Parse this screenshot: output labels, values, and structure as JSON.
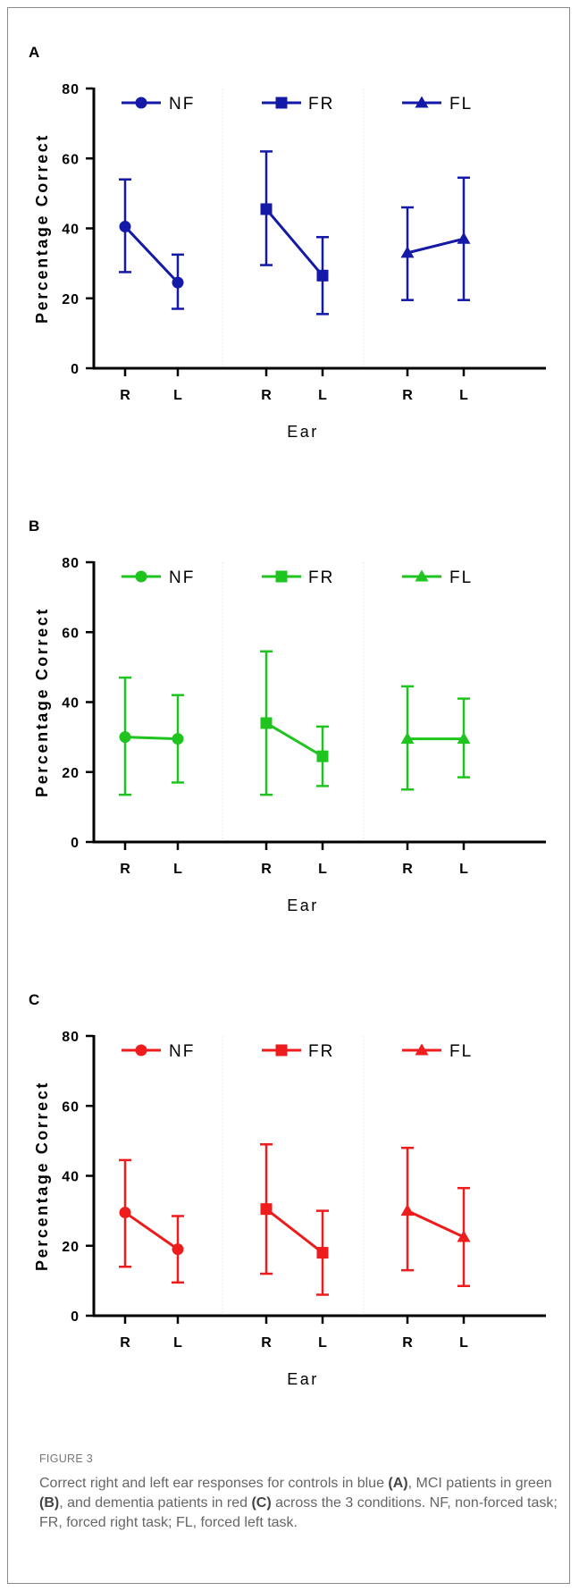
{
  "chart_data": [
    {
      "type": "line",
      "panel_label": "A",
      "xlabel": "Ear",
      "ylabel": "Percentage Correct",
      "ylim": [
        0,
        80
      ],
      "yticks": [
        0,
        20,
        40,
        60,
        80
      ],
      "color": "#1419a8",
      "series": [
        {
          "name": "NF",
          "marker": "circle",
          "categories": [
            "R",
            "L"
          ],
          "values": [
            40.5,
            24.5
          ],
          "err_low": [
            27.5,
            17.0
          ],
          "err_high": [
            54.0,
            32.5
          ]
        },
        {
          "name": "FR",
          "marker": "square",
          "categories": [
            "R",
            "L"
          ],
          "values": [
            45.5,
            26.5
          ],
          "err_low": [
            29.5,
            15.5
          ],
          "err_high": [
            62.0,
            37.5
          ]
        },
        {
          "name": "FL",
          "marker": "triangle",
          "categories": [
            "R",
            "L"
          ],
          "values": [
            33.0,
            37.0
          ],
          "err_low": [
            19.5,
            19.5
          ],
          "err_high": [
            46.0,
            54.5
          ]
        }
      ]
    },
    {
      "type": "line",
      "panel_label": "B",
      "xlabel": "Ear",
      "ylabel": "Percentage Correct",
      "ylim": [
        0,
        80
      ],
      "yticks": [
        0,
        20,
        40,
        60,
        80
      ],
      "color": "#1fc41f",
      "series": [
        {
          "name": "NF",
          "marker": "circle",
          "categories": [
            "R",
            "L"
          ],
          "values": [
            30.0,
            29.5
          ],
          "err_low": [
            13.5,
            17.0
          ],
          "err_high": [
            47.0,
            42.0
          ]
        },
        {
          "name": "FR",
          "marker": "square",
          "categories": [
            "R",
            "L"
          ],
          "values": [
            34.0,
            24.5
          ],
          "err_low": [
            13.5,
            16.0
          ],
          "err_high": [
            54.5,
            33.0
          ]
        },
        {
          "name": "FL",
          "marker": "triangle",
          "categories": [
            "R",
            "L"
          ],
          "values": [
            29.5,
            29.5
          ],
          "err_low": [
            15.0,
            18.5
          ],
          "err_high": [
            44.5,
            41.0
          ]
        }
      ]
    },
    {
      "type": "line",
      "panel_label": "C",
      "xlabel": "Ear",
      "ylabel": "Percentage Correct",
      "ylim": [
        0,
        80
      ],
      "yticks": [
        0,
        20,
        40,
        60,
        80
      ],
      "color": "#ee1c1c",
      "series": [
        {
          "name": "NF",
          "marker": "circle",
          "categories": [
            "R",
            "L"
          ],
          "values": [
            29.5,
            19.0
          ],
          "err_low": [
            14.0,
            9.5
          ],
          "err_high": [
            44.5,
            28.5
          ]
        },
        {
          "name": "FR",
          "marker": "square",
          "categories": [
            "R",
            "L"
          ],
          "values": [
            30.5,
            18.0
          ],
          "err_low": [
            12.0,
            6.0
          ],
          "err_high": [
            49.0,
            30.0
          ]
        },
        {
          "name": "FL",
          "marker": "triangle",
          "categories": [
            "R",
            "L"
          ],
          "values": [
            30.0,
            22.5
          ],
          "err_low": [
            13.0,
            8.5
          ],
          "err_high": [
            48.0,
            36.5
          ]
        }
      ]
    }
  ],
  "caption": {
    "title": "FIGURE 3",
    "t1": "Correct right and left ear responses for controls in blue ",
    "pa": "(A)",
    "t2": ", MCI patients in green ",
    "pb": "(B)",
    "t3": ", and dementia patients in red ",
    "pc": "(C)",
    "t4": " across the 3 conditions. NF, non-forced task; FR, forced right task; FL, forced left task."
  }
}
